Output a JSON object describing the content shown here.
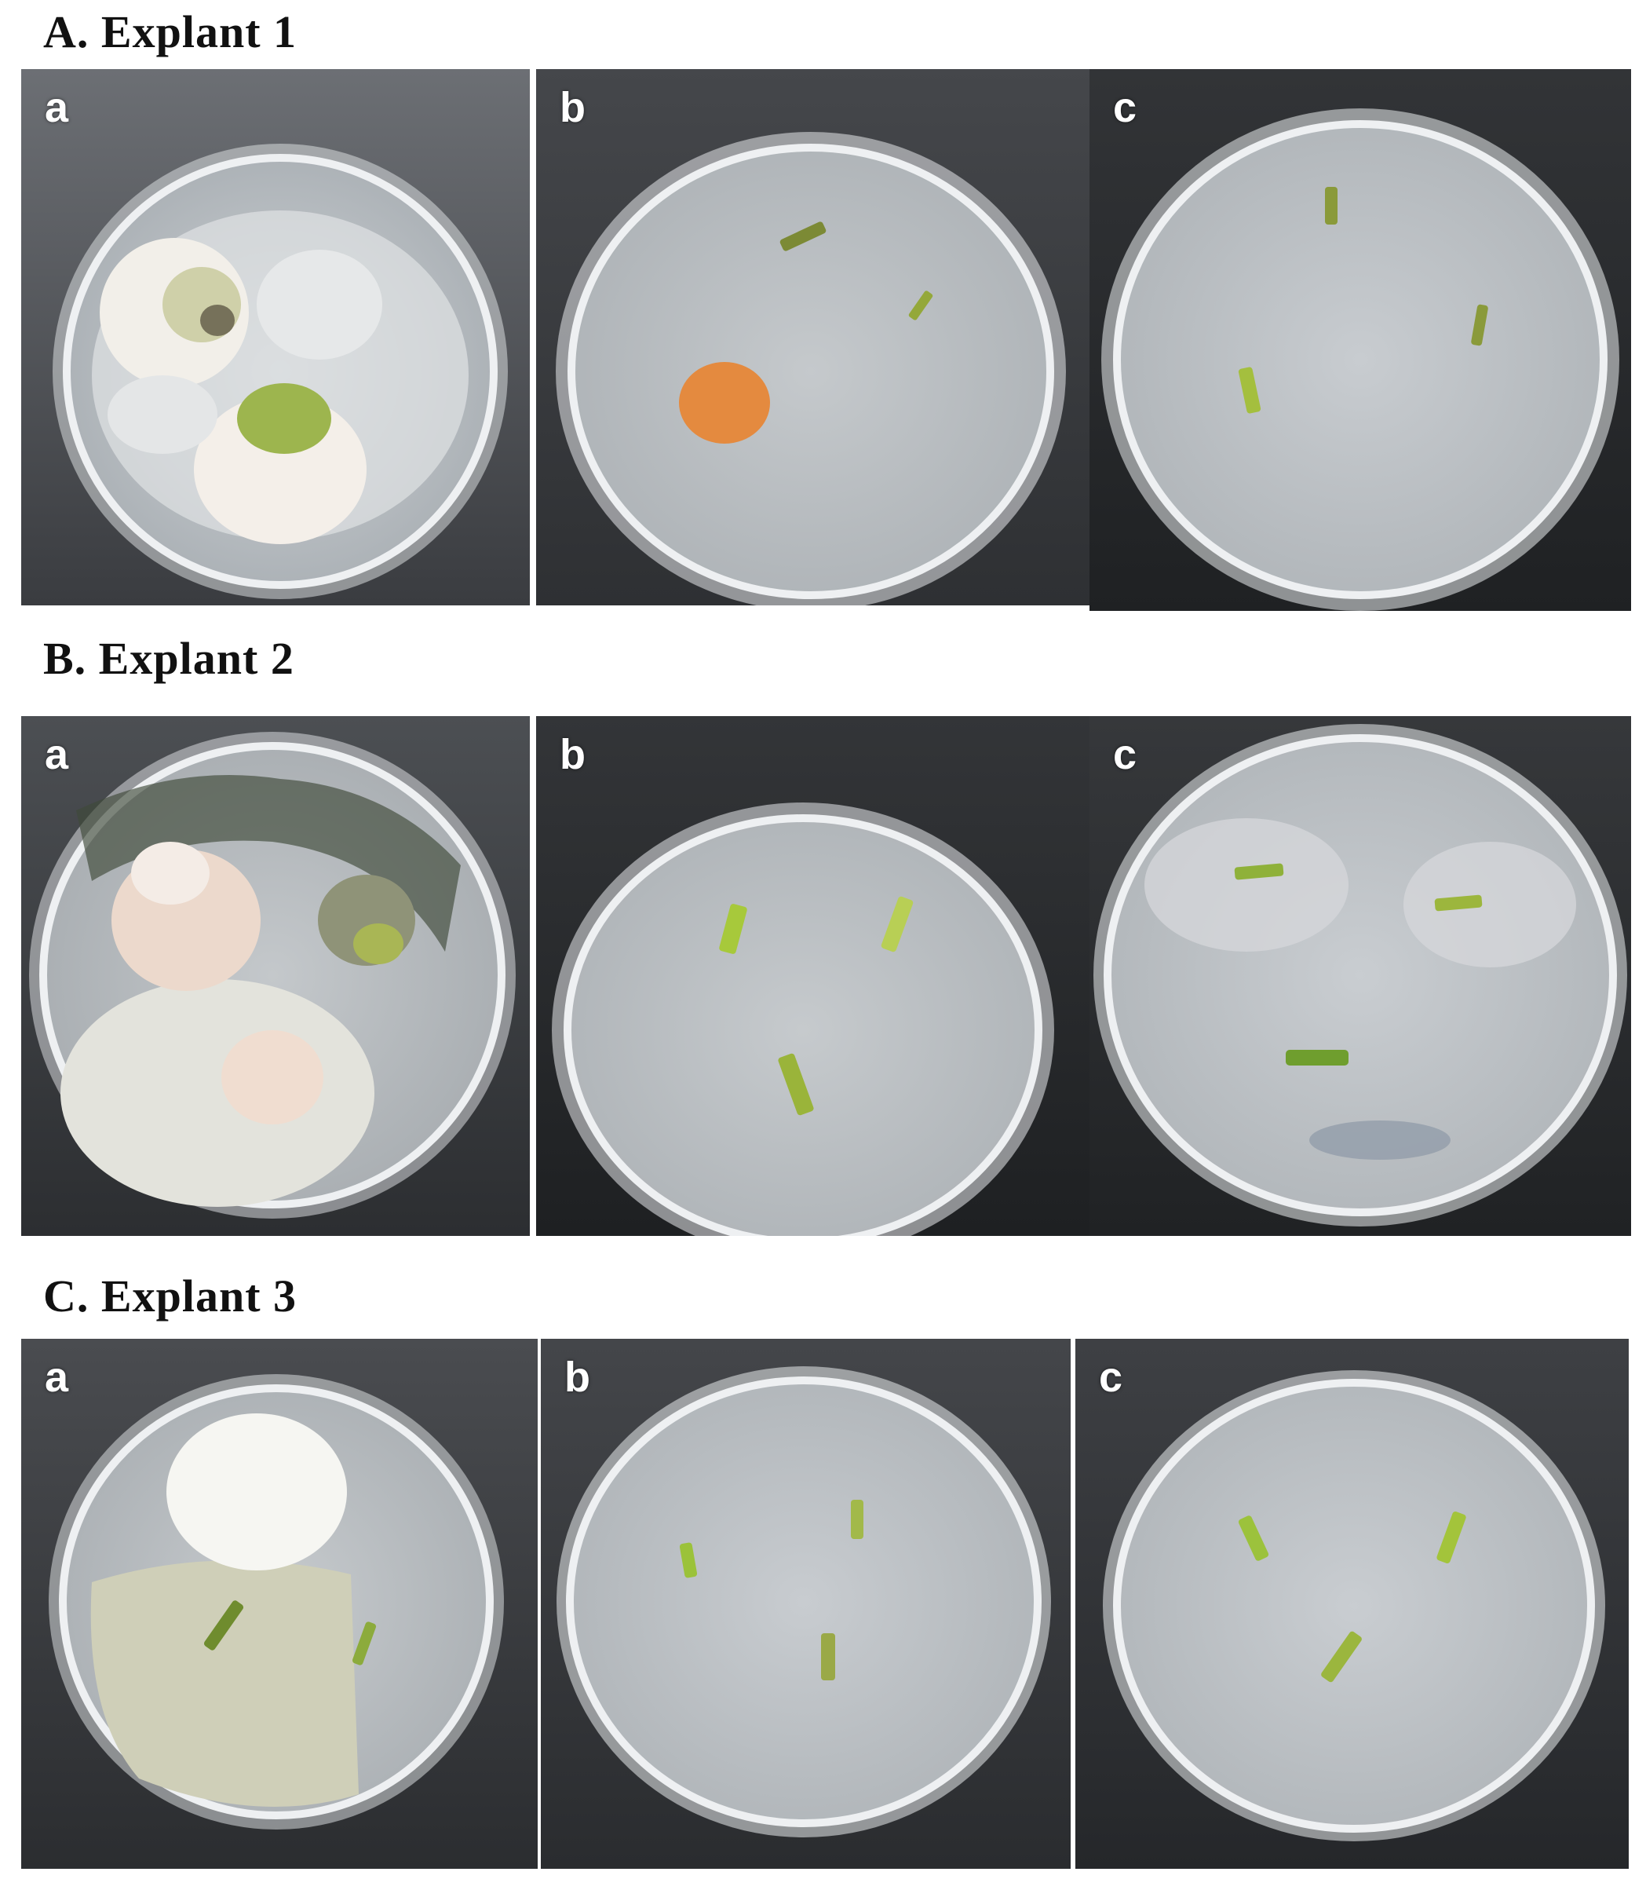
{
  "rows": [
    {
      "title": "A. Explant 1",
      "panels": [
        {
          "label": "a"
        },
        {
          "label": "b"
        },
        {
          "label": "c"
        }
      ]
    },
    {
      "title": "B. Explant 2",
      "panels": [
        {
          "label": "a"
        },
        {
          "label": "b"
        },
        {
          "label": "c"
        }
      ]
    },
    {
      "title": "C. Explant 3",
      "panels": [
        {
          "label": "a"
        },
        {
          "label": "b"
        },
        {
          "label": "c"
        }
      ]
    }
  ]
}
